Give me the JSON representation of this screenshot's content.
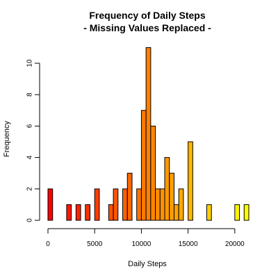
{
  "chart_data": {
    "type": "bar",
    "title": "Frequency of Daily Steps",
    "subtitle": "- Missing Values Replaced -",
    "xlabel": "Daily Steps",
    "ylabel": "Frequency",
    "bin_width": 500,
    "xlim": [
      0,
      21500
    ],
    "ylim": [
      0,
      11
    ],
    "x_ticks": [
      "0",
      "5000",
      "10000",
      "15000",
      "20000"
    ],
    "x_tick_values": [
      0,
      5000,
      10000,
      15000,
      20000
    ],
    "y_ticks": [
      "0",
      "2",
      "4",
      "6",
      "8",
      "10"
    ],
    "y_tick_values": [
      0,
      2,
      4,
      6,
      8,
      10
    ],
    "bins_start": [
      0,
      500,
      1000,
      1500,
      2000,
      2500,
      3000,
      3500,
      4000,
      4500,
      5000,
      5500,
      6000,
      6500,
      7000,
      7500,
      8000,
      8500,
      9000,
      9500,
      10000,
      10500,
      11000,
      11500,
      12000,
      12500,
      13000,
      13500,
      14000,
      14500,
      15000,
      15500,
      16000,
      16500,
      17000,
      17500,
      18000,
      18500,
      19000,
      19500,
      20000,
      20500,
      21000
    ],
    "values": [
      2,
      0,
      0,
      0,
      1,
      0,
      1,
      0,
      1,
      0,
      2,
      0,
      0,
      1,
      2,
      0,
      2,
      3,
      0,
      2,
      7,
      11,
      6,
      2,
      2,
      4,
      3,
      1,
      2,
      0,
      5,
      0,
      0,
      0,
      1,
      0,
      0,
      0,
      0,
      0,
      1,
      0,
      1
    ],
    "color_scale": [
      "#ff0000",
      "#ffff00"
    ],
    "grid": false,
    "legend": "none"
  }
}
